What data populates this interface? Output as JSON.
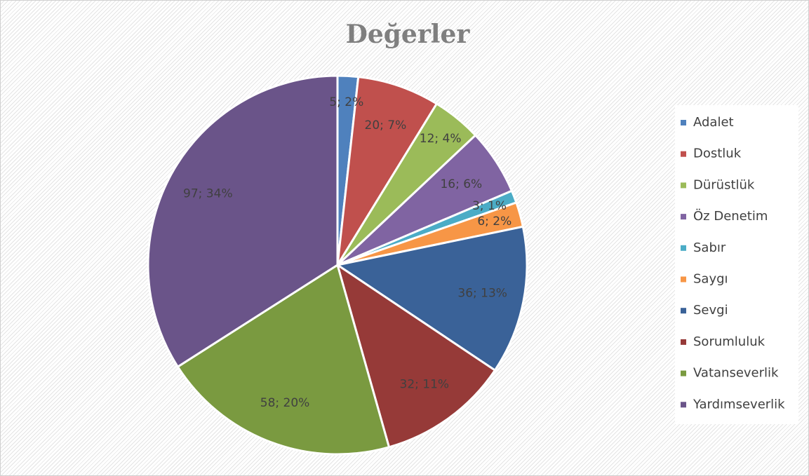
{
  "chart_data": {
    "type": "pie",
    "title": "Değerler",
    "categories": [
      "Adalet",
      "Dostluk",
      "Dürüstlük",
      "Öz Denetim",
      "Sabır",
      "Saygı",
      "Sevgi",
      "Sorumluluk",
      "Vatanseverlik",
      "Yardımseverlik"
    ],
    "values": [
      5,
      20,
      12,
      16,
      3,
      6,
      36,
      32,
      58,
      97
    ],
    "value_labels": [
      "5; 2%",
      "20; 7%",
      "12; 4%",
      "16; 6%",
      "3; 1%",
      "6; 2%",
      "36; 13%",
      "32; 11%",
      "58; 20%",
      "97; 34%"
    ],
    "colors": [
      "#4f81bd",
      "#c0504d",
      "#9bbb59",
      "#8064a2",
      "#4bacc6",
      "#f79646",
      "#3a6298",
      "#963a38",
      "#7a9a40",
      "#6a5489"
    ],
    "legend": "right"
  }
}
